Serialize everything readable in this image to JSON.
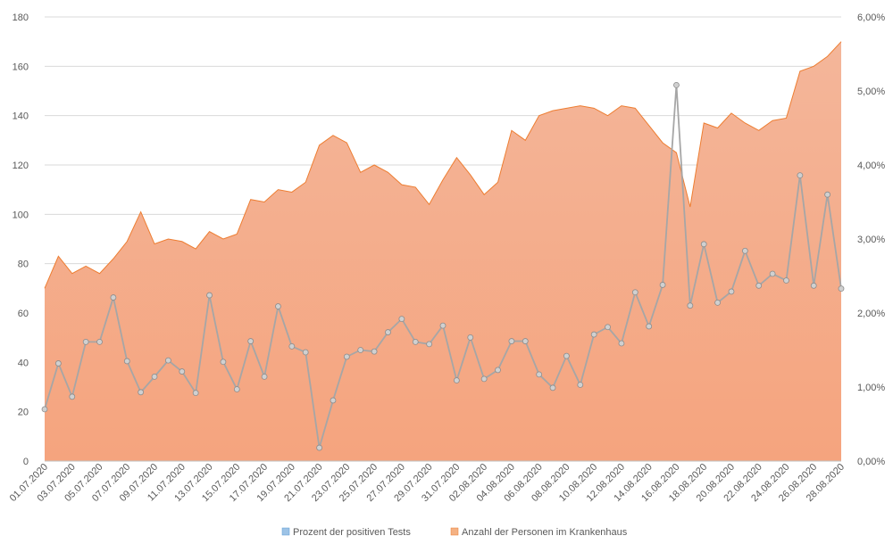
{
  "chart_data": {
    "type": "area+line",
    "title": "",
    "x": [
      "01.07.2020",
      "02.07.2020",
      "03.07.2020",
      "04.07.2020",
      "05.07.2020",
      "06.07.2020",
      "07.07.2020",
      "08.07.2020",
      "09.07.2020",
      "10.07.2020",
      "11.07.2020",
      "12.07.2020",
      "13.07.2020",
      "14.07.2020",
      "15.07.2020",
      "16.07.2020",
      "17.07.2020",
      "18.07.2020",
      "19.07.2020",
      "20.07.2020",
      "21.07.2020",
      "22.07.2020",
      "23.07.2020",
      "24.07.2020",
      "25.07.2020",
      "26.07.2020",
      "27.07.2020",
      "28.07.2020",
      "29.07.2020",
      "30.07.2020",
      "31.07.2020",
      "01.08.2020",
      "02.08.2020",
      "03.08.2020",
      "04.08.2020",
      "05.08.2020",
      "06.08.2020",
      "07.08.2020",
      "08.08.2020",
      "09.08.2020",
      "10.08.2020",
      "11.08.2020",
      "12.08.2020",
      "13.08.2020",
      "14.08.2020",
      "15.08.2020",
      "16.08.2020",
      "17.08.2020",
      "18.08.2020",
      "19.08.2020",
      "20.08.2020",
      "21.08.2020",
      "22.08.2020",
      "23.08.2020",
      "24.08.2020",
      "25.08.2020",
      "26.08.2020",
      "27.08.2020",
      "28.08.2020"
    ],
    "x_tick_labels": [
      "01.07.2020",
      "03.07.2020",
      "05.07.2020",
      "07.07.2020",
      "09.07.2020",
      "11.07.2020",
      "13.07.2020",
      "15.07.2020",
      "17.07.2020",
      "19.07.2020",
      "21.07.2020",
      "23.07.2020",
      "25.07.2020",
      "27.07.2020",
      "29.07.2020",
      "31.07.2020",
      "02.08.2020",
      "04.08.2020",
      "06.08.2020",
      "08.08.2020",
      "10.08.2020",
      "12.08.2020",
      "14.08.2020",
      "16.08.2020",
      "18.08.2020",
      "20.08.2020",
      "22.08.2020",
      "24.08.2020",
      "26.08.2020",
      "28.08.2020"
    ],
    "y_left": {
      "min": 0,
      "max": 180,
      "step": 20,
      "ticks": [
        "0",
        "20",
        "40",
        "60",
        "80",
        "100",
        "120",
        "140",
        "160",
        "180"
      ]
    },
    "y_right": {
      "min": 0,
      "max": 6,
      "step": 1,
      "ticks": [
        "0,00%",
        "1,00%",
        "2,00%",
        "3,00%",
        "4,00%",
        "5,00%",
        "6,00%"
      ]
    },
    "series": [
      {
        "name": "Anzahl der Personen im Krankenhaus",
        "type": "area",
        "axis": "left",
        "color": "#f4a17a",
        "values": [
          70,
          83,
          76,
          79,
          76,
          82,
          89,
          101,
          88,
          90,
          89,
          86,
          93,
          90,
          92,
          106,
          105,
          110,
          109,
          113,
          128,
          132,
          129,
          117,
          120,
          117,
          112,
          111,
          104,
          114,
          123,
          116,
          108,
          113,
          134,
          130,
          140,
          142,
          143,
          144,
          143,
          140,
          144,
          143,
          136,
          129,
          125,
          103,
          137,
          135,
          141,
          137,
          134,
          138,
          139,
          158,
          160,
          164,
          170
        ]
      },
      {
        "name": "Prozent der positiven Tests",
        "type": "line",
        "axis": "right",
        "color": "#a6a6a6",
        "values": [
          0.7,
          1.32,
          0.87,
          1.61,
          1.61,
          2.21,
          1.35,
          0.93,
          1.14,
          1.36,
          1.21,
          0.92,
          2.24,
          1.34,
          0.97,
          1.62,
          1.14,
          2.09,
          1.55,
          1.47,
          0.18,
          0.82,
          1.41,
          1.5,
          1.48,
          1.74,
          1.92,
          1.61,
          1.58,
          1.83,
          1.09,
          1.67,
          1.11,
          1.23,
          1.62,
          1.62,
          1.17,
          0.99,
          1.42,
          1.03,
          1.71,
          1.81,
          1.59,
          2.28,
          1.82,
          2.38,
          5.08,
          2.1,
          2.93,
          2.14,
          2.29,
          2.84,
          2.37,
          2.53,
          2.44,
          3.86,
          2.37,
          3.6,
          2.33
        ]
      }
    ],
    "legend": {
      "position": "bottom",
      "items": [
        {
          "label": "Prozent der positiven Tests",
          "color": "#9dc3e6"
        },
        {
          "label": "Anzahl der Personen im Krankenhaus",
          "color": "#f4b183"
        }
      ]
    },
    "grid": true
  }
}
